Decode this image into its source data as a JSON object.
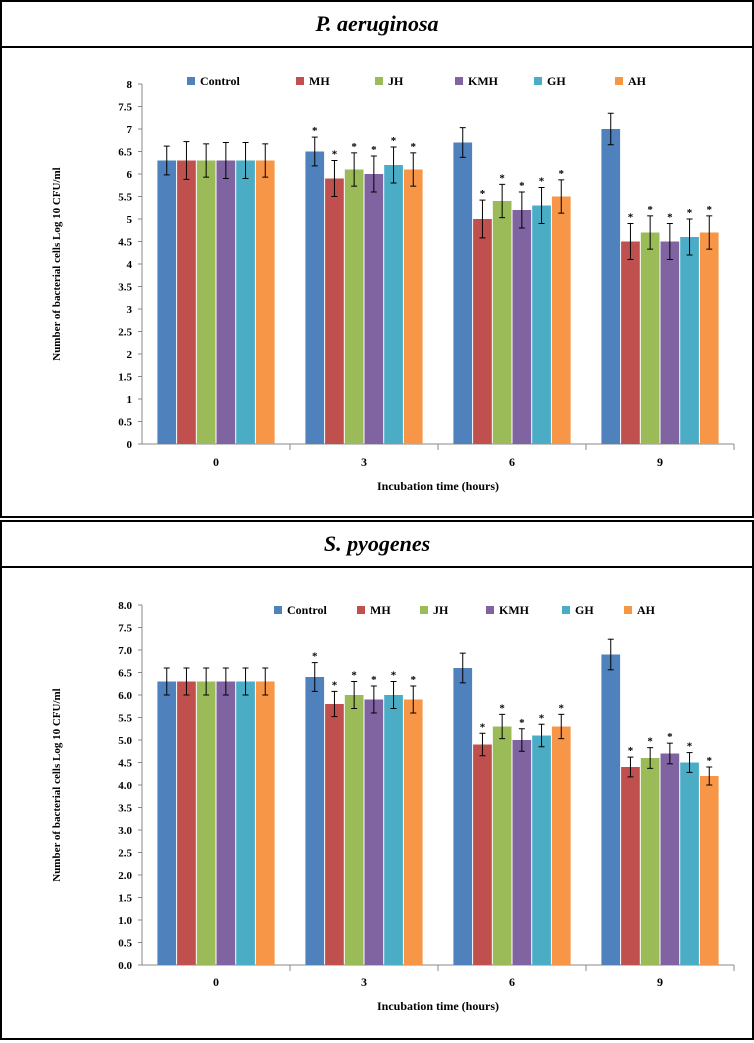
{
  "colors": {
    "Control": "#4f81bd",
    "MH": "#c0504d",
    "JH": "#9bbb59",
    "KMH": "#8064a2",
    "GH": "#4bacc6",
    "AH": "#f79646"
  },
  "chart_data": [
    {
      "type": "bar",
      "title": "P. aeruginosa",
      "xlabel": "Incubation time (hours)",
      "ylabel": "Number of bacterial cells Log 10 CFU/ml",
      "ylim": [
        0,
        8
      ],
      "yticks": [
        "0",
        "0.5",
        "1",
        "1.5",
        "2",
        "2.5",
        "3",
        "3.5",
        "4",
        "4.5",
        "5",
        "5.5",
        "6",
        "6.5",
        "7",
        "7.5",
        "8"
      ],
      "categories": [
        "0",
        "3",
        "6",
        "9"
      ],
      "legend": "top",
      "series": [
        {
          "name": "Control",
          "values": [
            6.3,
            6.5,
            6.7,
            7.0
          ],
          "errors": [
            0.32,
            0.32,
            0.33,
            0.35
          ],
          "sig": [
            "",
            "*",
            "",
            ""
          ]
        },
        {
          "name": "MH",
          "values": [
            6.3,
            5.9,
            5.0,
            4.5
          ],
          "errors": [
            0.42,
            0.4,
            0.42,
            0.4
          ],
          "sig": [
            "",
            "*",
            "*",
            "*"
          ]
        },
        {
          "name": "JH",
          "values": [
            6.3,
            6.1,
            5.4,
            4.7
          ],
          "errors": [
            0.37,
            0.37,
            0.37,
            0.37
          ],
          "sig": [
            "",
            "*",
            "*",
            "*"
          ]
        },
        {
          "name": "KMH",
          "values": [
            6.3,
            6.0,
            5.2,
            4.5
          ],
          "errors": [
            0.4,
            0.4,
            0.4,
            0.4
          ],
          "sig": [
            "",
            "*",
            "*",
            "*"
          ]
        },
        {
          "name": "GH",
          "values": [
            6.3,
            6.2,
            5.3,
            4.6
          ],
          "errors": [
            0.4,
            0.4,
            0.4,
            0.4
          ],
          "sig": [
            "",
            "*",
            "*",
            "*"
          ]
        },
        {
          "name": "AH",
          "values": [
            6.3,
            6.1,
            5.5,
            4.7
          ],
          "errors": [
            0.37,
            0.37,
            0.37,
            0.37
          ],
          "sig": [
            "",
            "*",
            "*",
            "*"
          ]
        }
      ]
    },
    {
      "type": "bar",
      "title": "S. pyogenes",
      "xlabel": "Incubation time (hours)",
      "ylabel": "Number of bacterial cells Log 10 CFU/ml",
      "ylim": [
        0,
        8
      ],
      "yticks": [
        "0.0",
        "0.5",
        "1.0",
        "1.5",
        "2.0",
        "2.5",
        "3.0",
        "3.5",
        "4.0",
        "4.5",
        "5.0",
        "5.5",
        "6.0",
        "6.5",
        "7.0",
        "7.5",
        "8.0"
      ],
      "categories": [
        "0",
        "3",
        "6",
        "9"
      ],
      "legend": "top",
      "series": [
        {
          "name": "Control",
          "values": [
            6.3,
            6.4,
            6.6,
            6.9
          ],
          "errors": [
            0.3,
            0.32,
            0.33,
            0.34
          ],
          "sig": [
            "",
            "*",
            "",
            ""
          ]
        },
        {
          "name": "MH",
          "values": [
            6.3,
            5.8,
            4.9,
            4.4
          ],
          "errors": [
            0.3,
            0.28,
            0.25,
            0.22
          ],
          "sig": [
            "",
            "*",
            "*",
            "*"
          ]
        },
        {
          "name": "JH",
          "values": [
            6.3,
            6.0,
            5.3,
            4.6
          ],
          "errors": [
            0.3,
            0.3,
            0.27,
            0.23
          ],
          "sig": [
            "",
            "*",
            "*",
            "*"
          ]
        },
        {
          "name": "KMH",
          "values": [
            6.3,
            5.9,
            5.0,
            4.7
          ],
          "errors": [
            0.3,
            0.3,
            0.25,
            0.23
          ],
          "sig": [
            "",
            "*",
            "*",
            "*"
          ]
        },
        {
          "name": "GH",
          "values": [
            6.3,
            6.0,
            5.1,
            4.5
          ],
          "errors": [
            0.3,
            0.3,
            0.25,
            0.22
          ],
          "sig": [
            "",
            "*",
            "*",
            "*"
          ]
        },
        {
          "name": "AH",
          "values": [
            6.3,
            5.9,
            5.3,
            4.2
          ],
          "errors": [
            0.3,
            0.3,
            0.27,
            0.2
          ],
          "sig": [
            "",
            "*",
            "*",
            "*"
          ]
        }
      ]
    }
  ]
}
